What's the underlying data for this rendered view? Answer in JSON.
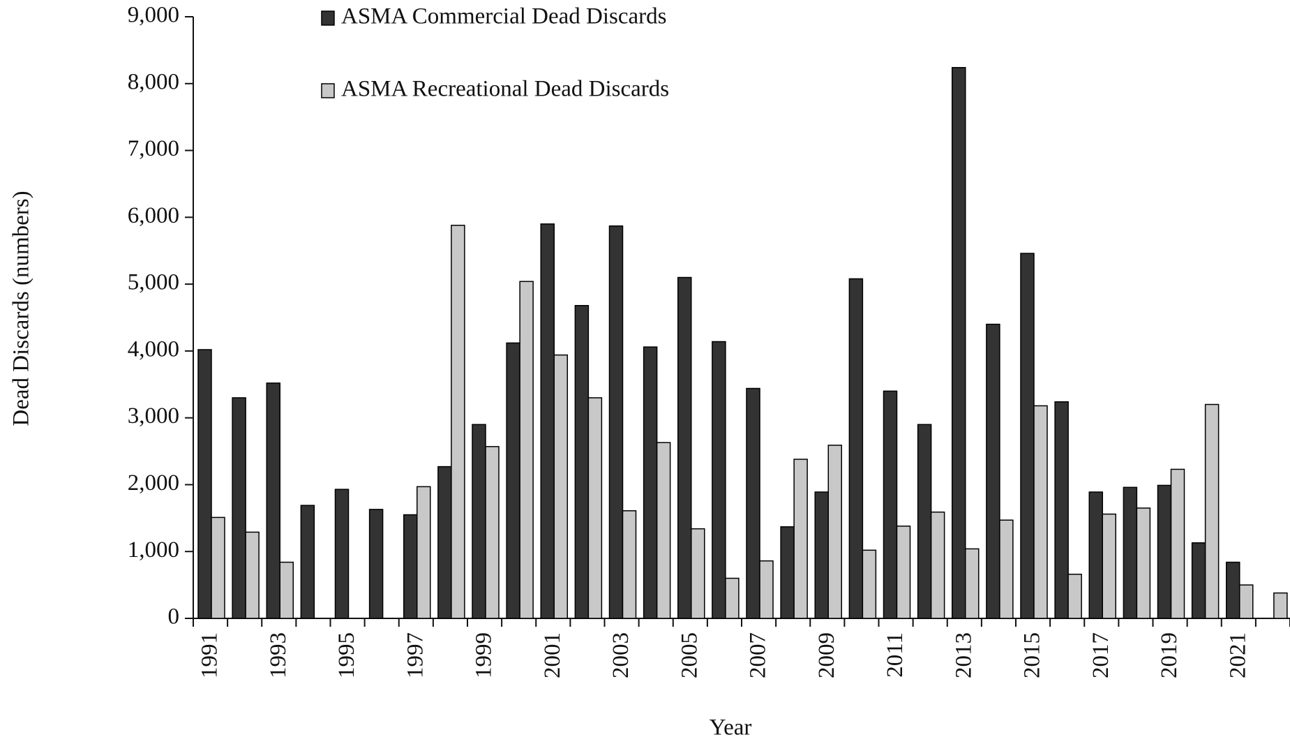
{
  "chart_data": {
    "type": "bar",
    "x_label": "Year",
    "y_label": "Dead Discards (numbers)",
    "categories": [
      1991,
      null,
      1993,
      null,
      1995,
      null,
      1997,
      null,
      1999,
      null,
      2001,
      null,
      2003,
      null,
      2005,
      null,
      2007,
      null,
      2009,
      null,
      2011,
      null,
      2013,
      null,
      2015,
      null,
      2017,
      null,
      2019,
      null,
      2021,
      null
    ],
    "series": [
      {
        "name": "ASMA Commercial Dead Discards",
        "color": "#333333",
        "values": [
          4020,
          3300,
          3520,
          1690,
          1930,
          1630,
          1550,
          2270,
          2900,
          4120,
          5900,
          4680,
          5870,
          4060,
          5100,
          4140,
          3440,
          1370,
          1890,
          5080,
          3400,
          2900,
          8240,
          4400,
          5460,
          3240,
          1890,
          1960,
          1990,
          1130,
          840,
          0
        ]
      },
      {
        "name": "ASMA Recreational Dead Discards",
        "color": "#c8c8c8",
        "values": [
          1510,
          1290,
          840,
          0,
          0,
          0,
          1970,
          5880,
          2570,
          5040,
          3940,
          3300,
          1610,
          2630,
          1340,
          600,
          860,
          2380,
          2590,
          1020,
          1380,
          1590,
          1040,
          1470,
          3180,
          660,
          1560,
          1650,
          2230,
          3200,
          500,
          380
        ]
      }
    ],
    "ylim": [
      0,
      9000
    ],
    "yticks": [
      0,
      {
        "value": 1000,
        "label": "1,000"
      },
      {
        "value": 2000,
        "label": "2,000"
      },
      {
        "value": 3000,
        "label": "3,000"
      },
      {
        "value": 4000,
        "label": "4,000"
      },
      {
        "value": 5000,
        "label": "5,000"
      },
      {
        "value": 6000,
        "label": "6,000"
      },
      {
        "value": 7000,
        "label": "7,000"
      },
      {
        "value": 8000,
        "label": "8,000"
      },
      {
        "value": 9000,
        "label": "9,000"
      }
    ],
    "grid": false,
    "legend": "top-left"
  }
}
